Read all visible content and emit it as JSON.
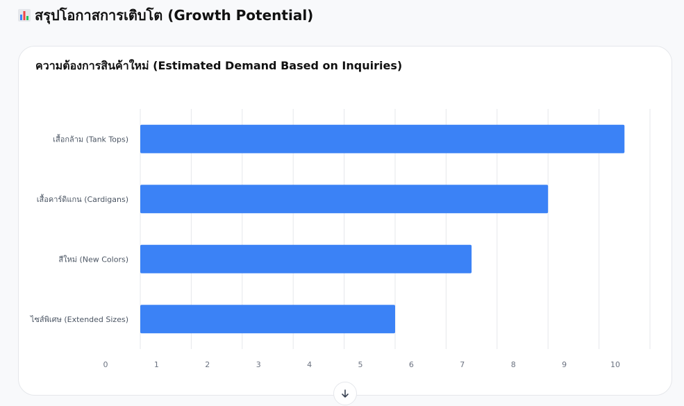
{
  "section": {
    "title": "สรุปโอกาสการเติบโต (Growth Potential)",
    "icon": "bar-chart-icon"
  },
  "chart_data": {
    "type": "bar",
    "orientation": "horizontal",
    "title": "ความต้องการสินค้าใหม่ (Estimated Demand Based on Inquiries)",
    "categories": [
      "เสื้อกล้าม (Tank Tops)",
      "เสื้อคาร์ดิแกน (Cardigans)",
      "สีใหม่ (New Colors)",
      "ไซส์พิเศษ (Extended Sizes)"
    ],
    "values": [
      9.5,
      8,
      6.5,
      5
    ],
    "x_ticks": [
      "0",
      "1",
      "2",
      "3",
      "4",
      "5",
      "6",
      "7",
      "8",
      "9",
      "10"
    ],
    "xlim": [
      0,
      10
    ],
    "grid": true,
    "bar_color": "#3b82f6"
  },
  "scroll_button": {
    "icon": "arrow-down-icon"
  }
}
